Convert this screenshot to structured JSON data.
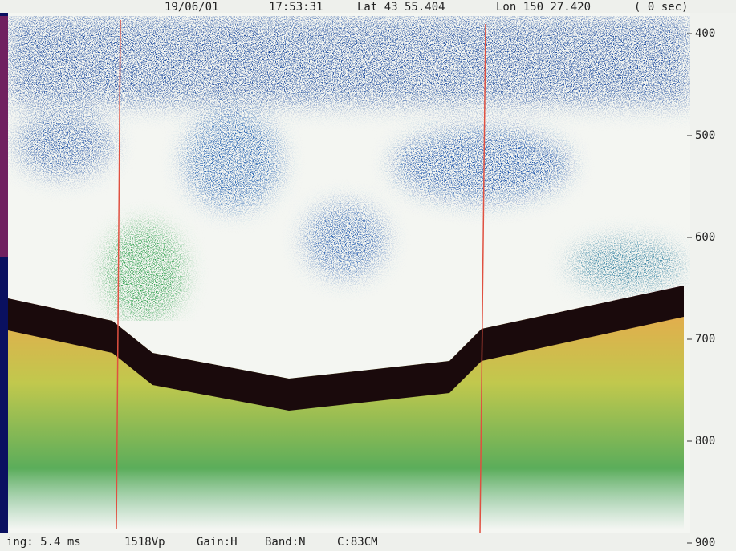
{
  "header": {
    "date": "19/06/01",
    "time": "17:53:31",
    "lat": "Lat 43 55.404",
    "lon": "Lon 150 27.420",
    "elapsed": "( 0 sec)"
  },
  "depth_axis": {
    "labels": [
      "400",
      "500",
      "600",
      "700",
      "800",
      "900"
    ]
  },
  "footer": {
    "ping": "ing: 5.4 ms",
    "sound_speed": "1518Vp",
    "gain": "Gain:H",
    "band": "Band:N",
    "c": "C:83CM"
  }
}
